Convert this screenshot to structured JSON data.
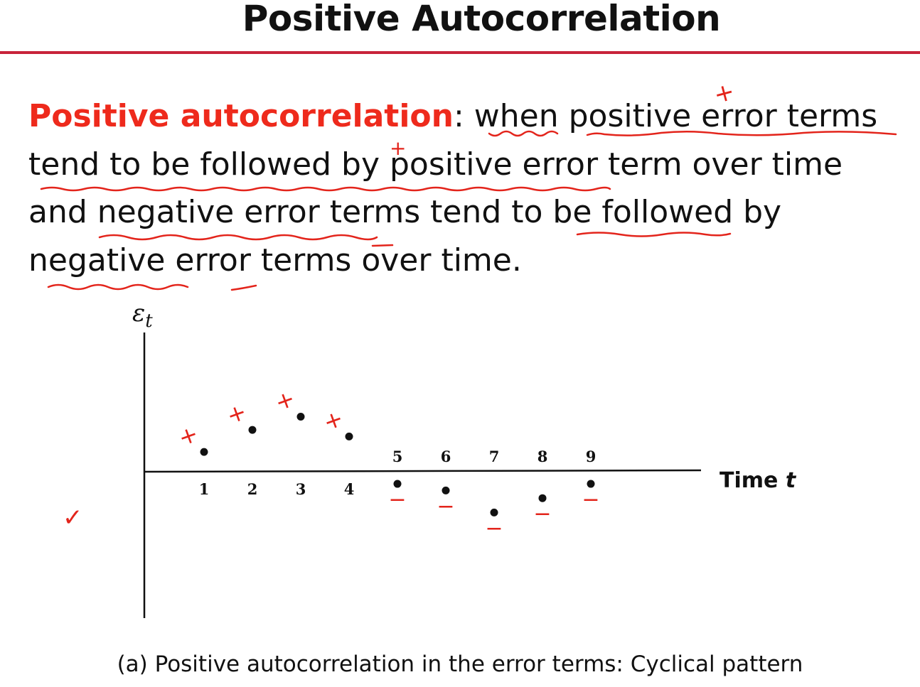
{
  "slide": {
    "title": "Positive Autocorrelation"
  },
  "definition": {
    "term": "Positive autocorrelation",
    "line1_rest": ": when positive error terms",
    "line2": "tend to be followed by positive error term over time",
    "line3": "and negative error terms tend to be followed by",
    "line4": "negative error terms over time."
  },
  "annotations": {
    "plus_sign": "+",
    "minus_sign": "−",
    "check_mark": "✓",
    "ink_color": "#e3241b"
  },
  "chart_data": {
    "type": "scatter",
    "title": "",
    "ylabel": "εt",
    "xlabel": "Time t",
    "x": [
      1,
      2,
      3,
      4,
      5,
      6,
      7,
      8,
      9
    ],
    "y": [
      0.9,
      1.9,
      2.5,
      1.6,
      -0.55,
      -0.85,
      -1.85,
      -1.2,
      -0.55
    ],
    "y_axis_symbol": "ε",
    "y_axis_subscript": "t",
    "x_axis_word": "Time",
    "x_axis_variable": "t",
    "tick_labels": [
      "1",
      "2",
      "3",
      "4",
      "5",
      "6",
      "7",
      "8",
      "9"
    ],
    "xlim": [
      0,
      10
    ],
    "ylim": [
      -6,
      6
    ],
    "grid": false,
    "annotations": [
      "+",
      "+",
      "+",
      "+",
      "−",
      "−",
      "−",
      "−",
      "−"
    ],
    "caption": "(a) Positive autocorrelation in the error terms: Cyclical pattern"
  }
}
